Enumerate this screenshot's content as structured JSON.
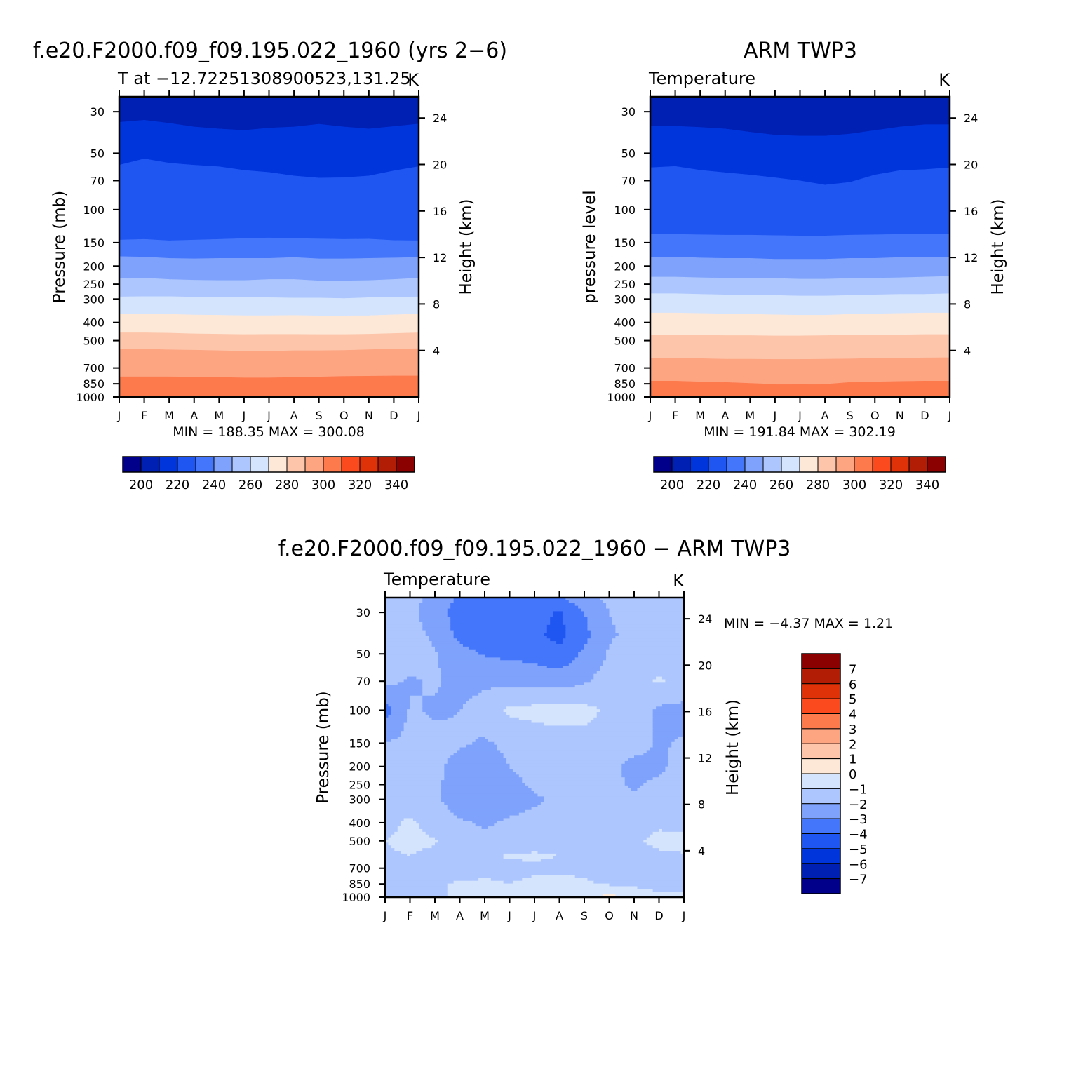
{
  "chart_data": [
    {
      "type": "heatmap",
      "title": "f.e20.F2000.f09_f09.195.022_1960 (yrs 2−6)",
      "subtitle_left": "T at −12.72251308900523,131.25",
      "units": "K",
      "ylabel": "Pressure (mb)",
      "ylabel_right": "Height (km)",
      "xlabel": "",
      "log_y": true,
      "x_ticks": [
        "J",
        "F",
        "M",
        "A",
        "M",
        "J",
        "J",
        "A",
        "S",
        "O",
        "N",
        "D",
        "J"
      ],
      "y_ticks": [
        30,
        50,
        70,
        100,
        150,
        200,
        250,
        300,
        400,
        500,
        700,
        850,
        1000
      ],
      "y_ticks_right": [
        24,
        20,
        16,
        12,
        8,
        4
      ],
      "ylim": [
        1000,
        25
      ],
      "min_max_text": "MIN =  188.35  MAX =  300.08",
      "min": 188.35,
      "max": 300.08,
      "colorbar": {
        "orientation": "horizontal",
        "labels": [
          "200",
          "220",
          "240",
          "260",
          "280",
          "300",
          "320",
          "340"
        ],
        "levels": [
          190,
          200,
          210,
          220,
          230,
          240,
          250,
          260,
          270,
          280,
          290,
          300,
          310,
          320,
          330,
          340,
          350
        ]
      },
      "contour_boundaries": {
        "months": [
          0,
          1,
          2,
          3,
          4,
          5,
          6,
          7,
          8,
          9,
          10,
          11,
          12
        ],
        "pressure_mb": [
          [
            34.2,
            33.3,
            34.6,
            36.2,
            37.1,
            37.8,
            36.7,
            36.2,
            35.0,
            36.2,
            37.1,
            36.0,
            34.9
          ],
          [
            57.9,
            53.6,
            56.5,
            57.9,
            59.0,
            61.7,
            63.3,
            66.1,
            67.8,
            67.5,
            66.1,
            62.1,
            58.9
          ],
          [
            145.3,
            144.0,
            146.6,
            145.3,
            144.0,
            142.7,
            141.5,
            142.7,
            143.3,
            144.0,
            143.6,
            146.0,
            146.6
          ],
          [
            178,
            179,
            182,
            183,
            182,
            182,
            182,
            180,
            183,
            183,
            182,
            181,
            180
          ],
          [
            234,
            232,
            236,
            238,
            239,
            239,
            236,
            236,
            240,
            240,
            239,
            236,
            232
          ],
          [
            292,
            291,
            291,
            293,
            293,
            295,
            295,
            296,
            296,
            298,
            295,
            293,
            292
          ],
          [
            360,
            360,
            362,
            365,
            366,
            368,
            368,
            367,
            369,
            369,
            368,
            364,
            361
          ],
          [
            454,
            454,
            456,
            460,
            462,
            464,
            463,
            463,
            464,
            464,
            462,
            458,
            454
          ],
          [
            555,
            556,
            560,
            562,
            566,
            570,
            570,
            566,
            566,
            564,
            559,
            555,
            552
          ],
          [
            780,
            780,
            780,
            782,
            786,
            790,
            790,
            786,
            782,
            776,
            774,
            772,
            772
          ]
        ],
        "fill_values": [
          205,
          215,
          225,
          235,
          245,
          255,
          265,
          275,
          285,
          295,
          305
        ]
      }
    },
    {
      "type": "heatmap",
      "title": "ARM TWP3",
      "subtitle_left": "Temperature",
      "units": "K",
      "ylabel": "pressure level",
      "ylabel_right": "Height (km)",
      "xlabel": "",
      "log_y": true,
      "x_ticks": [
        "J",
        "F",
        "M",
        "A",
        "M",
        "J",
        "J",
        "A",
        "S",
        "O",
        "N",
        "D",
        "J"
      ],
      "y_ticks": [
        30,
        50,
        70,
        100,
        150,
        200,
        250,
        300,
        400,
        500,
        700,
        850,
        1000
      ],
      "y_ticks_right": [
        24,
        20,
        16,
        12,
        8,
        4
      ],
      "ylim": [
        1000,
        25
      ],
      "min_max_text": "MIN =  191.84  MAX =  302.19",
      "min": 191.84,
      "max": 302.19,
      "colorbar": {
        "orientation": "horizontal",
        "labels": [
          "200",
          "220",
          "240",
          "260",
          "280",
          "300",
          "320",
          "340"
        ],
        "levels": [
          190,
          200,
          210,
          220,
          230,
          240,
          250,
          260,
          270,
          280,
          290,
          300,
          310,
          320,
          330,
          340,
          350
        ]
      },
      "contour_boundaries": {
        "months": [
          0,
          1,
          2,
          3,
          4,
          5,
          6,
          7,
          8,
          9,
          10,
          11,
          12
        ],
        "pressure_mb": [
          [
            35.7,
            35.9,
            36.4,
            37.1,
            38.6,
            40.0,
            40.5,
            40.5,
            39.5,
            37.8,
            36.2,
            35.2,
            35.2
          ],
          [
            59.7,
            58.8,
            61.6,
            63.5,
            65.3,
            67.6,
            70.2,
            73.9,
            71.5,
            65.3,
            61.9,
            61.1,
            59.7
          ],
          [
            135.5,
            135.5,
            136.2,
            136.8,
            136.8,
            137.5,
            138.1,
            138.1,
            136.8,
            136.2,
            135.5,
            135.5,
            135.5
          ],
          [
            179,
            179,
            181,
            182,
            182,
            184,
            184,
            184,
            182,
            182,
            180,
            179,
            179
          ],
          [
            229,
            229,
            231,
            232,
            233,
            233,
            235,
            235,
            233,
            232,
            231,
            229,
            227
          ],
          [
            281,
            281,
            283,
            285,
            285,
            287,
            289,
            289,
            287,
            285,
            283,
            283,
            281
          ],
          [
            356,
            356,
            358,
            360,
            362,
            364,
            366,
            366,
            362,
            360,
            358,
            356,
            356
          ],
          [
            466,
            466,
            468,
            470,
            470,
            472,
            472,
            470,
            468,
            468,
            466,
            464,
            464
          ],
          [
            622,
            622,
            624,
            628,
            628,
            630,
            630,
            628,
            626,
            622,
            620,
            618,
            617
          ],
          [
            822,
            822,
            830,
            836,
            846,
            856,
            858,
            856,
            836,
            830,
            826,
            822,
            822
          ]
        ],
        "fill_values": [
          205,
          215,
          225,
          235,
          245,
          255,
          265,
          275,
          285,
          295,
          305
        ]
      }
    },
    {
      "type": "heatmap",
      "title": "f.e20.F2000.f09_f09.195.022_1960 − ARM TWP3",
      "subtitle_left": "Temperature",
      "units": "K",
      "ylabel": "Pressure (mb)",
      "ylabel_right": "Height (km)",
      "xlabel": "",
      "log_y": true,
      "x_ticks": [
        "J",
        "F",
        "M",
        "A",
        "M",
        "J",
        "J",
        "A",
        "S",
        "O",
        "N",
        "D",
        "J"
      ],
      "y_ticks": [
        30,
        50,
        70,
        100,
        150,
        200,
        250,
        300,
        400,
        500,
        700,
        850,
        1000
      ],
      "y_ticks_right": [
        24,
        20,
        16,
        12,
        8,
        4
      ],
      "ylim": [
        1000,
        25
      ],
      "min_max_text": "MIN =   −4.37  MAX =     1.21",
      "min": -4.37,
      "max": 1.21,
      "colorbar": {
        "orientation": "vertical",
        "labels": [
          "7",
          "6",
          "5",
          "4",
          "3",
          "2",
          "1",
          "0",
          "−1",
          "−2",
          "−3",
          "−4",
          "−5",
          "−6",
          "−7"
        ],
        "levels": [
          8,
          7,
          6,
          5,
          4,
          3,
          2,
          1,
          0,
          -1,
          -2,
          -3,
          -4,
          -5,
          -6,
          -7,
          -8
        ]
      },
      "grid_months": [
        0,
        1,
        2,
        3,
        4,
        5,
        6,
        7,
        8,
        9,
        10,
        11,
        12
      ],
      "grid_pressure_mb": [
        25,
        30,
        40,
        50,
        70,
        100,
        150,
        200,
        250,
        300,
        400,
        500,
        600,
        700,
        850,
        1000
      ],
      "grid_values": [
        [
          -1.8,
          -1.7,
          -2.3,
          -3.2,
          -3.2,
          -3.2,
          -3.4,
          -3.1,
          -2.2,
          -1.8,
          -1.6,
          -1.7,
          -1.8
        ],
        [
          -1.8,
          -1.7,
          -2.6,
          -3.4,
          -3.4,
          -3.6,
          -3.7,
          -4.1,
          -3.0,
          -2.0,
          -1.7,
          -1.7,
          -1.8
        ],
        [
          -1.7,
          -1.6,
          -2.2,
          -3.3,
          -3.6,
          -3.7,
          -3.8,
          -4.3,
          -3.3,
          -2.1,
          -1.8,
          -1.8,
          -1.7
        ],
        [
          -1.5,
          -1.5,
          -1.9,
          -2.6,
          -3.1,
          -3.2,
          -3.3,
          -3.7,
          -2.8,
          -1.9,
          -1.6,
          -1.4,
          -1.5
        ],
        [
          -1.8,
          -2.1,
          -1.9,
          -2.3,
          -2.2,
          -2.3,
          -2.4,
          -2.5,
          -2.1,
          -1.6,
          -1.3,
          -0.9,
          -1.3
        ],
        [
          -3.4,
          -1.9,
          -2.1,
          -2.0,
          -1.6,
          -0.8,
          -0.7,
          -0.6,
          -0.7,
          -1.2,
          -1.3,
          -2.2,
          -2.3
        ],
        [
          -2.0,
          -1.7,
          -1.8,
          -1.9,
          -2.1,
          -1.8,
          -1.5,
          -1.4,
          -1.3,
          -1.4,
          -1.6,
          -2.1,
          -1.9
        ],
        [
          -1.6,
          -1.6,
          -1.8,
          -2.3,
          -2.4,
          -2.0,
          -1.7,
          -1.5,
          -1.4,
          -1.7,
          -2.3,
          -2.2,
          -1.6
        ],
        [
          -1.5,
          -1.5,
          -1.8,
          -2.5,
          -2.4,
          -2.2,
          -1.9,
          -1.6,
          -1.6,
          -1.8,
          -2.1,
          -1.8,
          -1.6
        ],
        [
          -1.6,
          -1.6,
          -1.8,
          -2.5,
          -2.5,
          -2.3,
          -2.1,
          -1.9,
          -1.7,
          -1.8,
          -1.9,
          -1.7,
          -1.6
        ],
        [
          -1.3,
          -0.8,
          -1.5,
          -1.9,
          -2.1,
          -1.9,
          -1.8,
          -1.6,
          -1.7,
          -1.6,
          -1.5,
          -1.2,
          -1.5
        ],
        [
          -1.0,
          -0.8,
          -0.9,
          -1.6,
          -1.8,
          -1.7,
          -1.6,
          -1.6,
          -1.5,
          -1.5,
          -1.2,
          -0.7,
          -0.6
        ],
        [
          -1.1,
          -1.0,
          -1.2,
          -1.3,
          -1.1,
          -0.9,
          -0.8,
          -1.0,
          -1.1,
          -1.3,
          -1.4,
          -1.2,
          -1.1
        ],
        [
          -1.3,
          -1.2,
          -1.3,
          -1.5,
          -1.4,
          -1.3,
          -1.2,
          -1.3,
          -1.2,
          -1.3,
          -1.4,
          -1.3,
          -1.3
        ],
        [
          -1.2,
          -1.1,
          -1.1,
          -0.9,
          -0.8,
          -1.0,
          -0.8,
          -0.6,
          -0.9,
          -1.1,
          -1.2,
          -1.2,
          -1.1
        ],
        [
          -1.2,
          -1.1,
          -1.0,
          -1.0,
          -1.0,
          -1.0,
          -0.9,
          -0.6,
          -0.3,
          0.3,
          -0.4,
          -0.9,
          -0.9
        ]
      ]
    }
  ]
}
